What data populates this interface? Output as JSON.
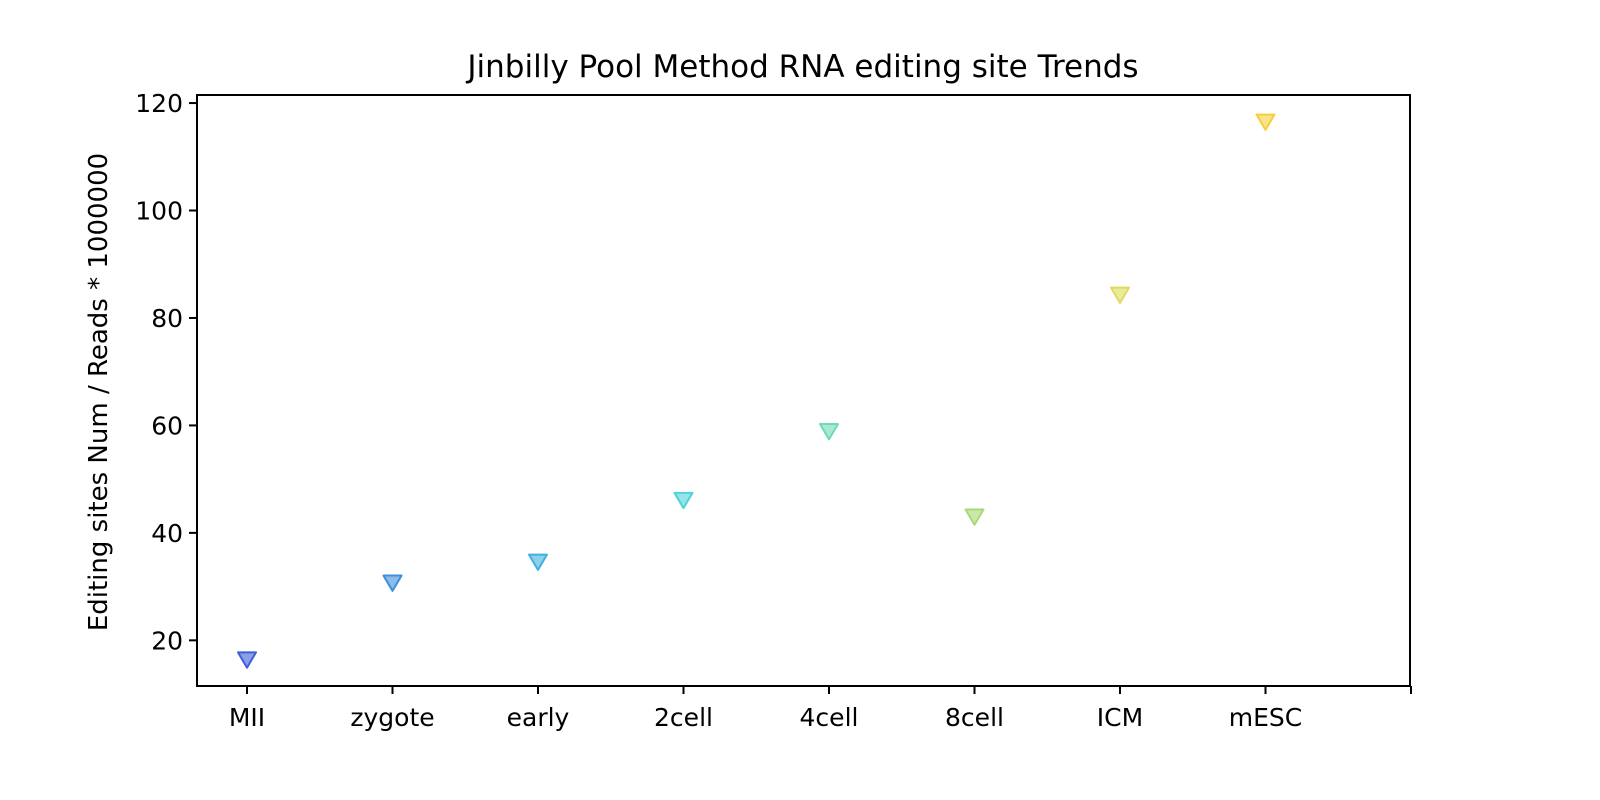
{
  "chart_data": {
    "type": "scatter",
    "title": "Jinbilly Pool Method RNA editing site Trends",
    "xlabel": "",
    "ylabel": "Editing sites Num / Reads * 1000000",
    "categories": [
      "MII",
      "zygote",
      "early",
      "2cell",
      "4cell",
      "8cell",
      "ICM",
      "mESC"
    ],
    "values": [
      16.5,
      30.8,
      34.7,
      46.2,
      59.0,
      43.1,
      84.4,
      116.6
    ],
    "point_colors": [
      "#3f5fd6",
      "#3d8fdb",
      "#3fb0e0",
      "#4fd2d8",
      "#6fdbb2",
      "#a9d975",
      "#e0dc5a",
      "#f5cf3c"
    ],
    "marker": "triangle-down",
    "ylim": [
      11.5,
      121.5
    ],
    "yticks": [
      20,
      40,
      60,
      80,
      100,
      120
    ],
    "x_slots": 9,
    "grid": false,
    "legend": "none"
  }
}
